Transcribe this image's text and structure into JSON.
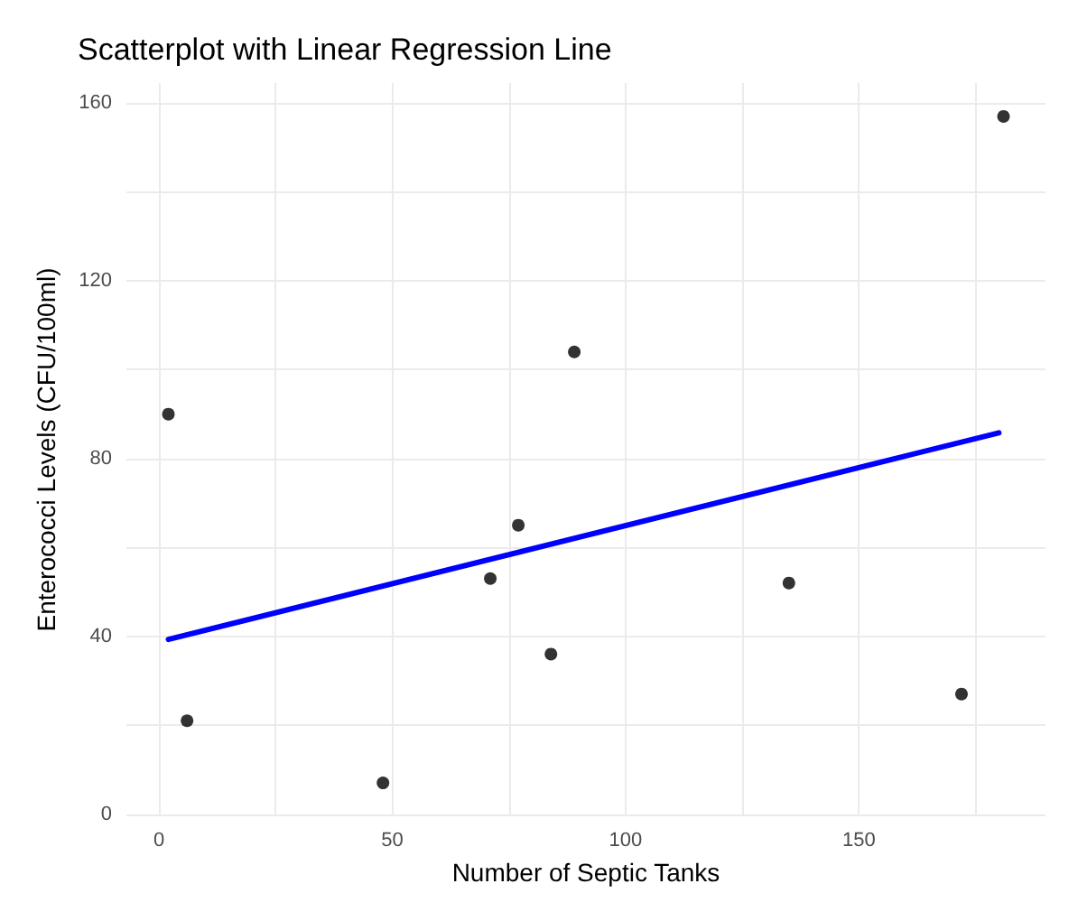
{
  "chart_data": {
    "type": "scatter",
    "title": "Scatterplot with Linear Regression Line",
    "xlabel": "Number of Septic Tanks",
    "ylabel": "Enterococci Levels (CFU/100ml)",
    "series": [
      {
        "color": "#000000",
        "marker": "circle",
        "x": [
          2,
          6,
          48,
          71,
          77,
          84,
          89,
          135,
          172,
          181
        ],
        "values": [
          90,
          21,
          7,
          53,
          65,
          36,
          104,
          52,
          27,
          157
        ]
      },
      {
        "type": "line",
        "marker": "none",
        "color": "#0000ff",
        "x": [
          2,
          180
        ],
        "values": [
          39.3,
          85.8
        ]
      }
    ],
    "xlim": [
      -7,
      190
    ],
    "xticks": [
      0,
      {
        "value": 25,
        "label": null
      },
      50,
      {
        "value": 75,
        "label": null
      },
      100,
      {
        "value": 125,
        "label": null
      },
      150,
      {
        "value": 175,
        "label": null
      }
    ],
    "ylim": [
      -0.5,
      164.5
    ],
    "yticks": [
      0,
      {
        "value": 20,
        "label": null
      },
      40,
      {
        "value": 60,
        "label": null
      },
      80,
      {
        "value": 100,
        "label": null
      },
      120,
      {
        "value": 140,
        "label": null
      },
      160
    ],
    "grid": true,
    "line_style": "solid"
  }
}
